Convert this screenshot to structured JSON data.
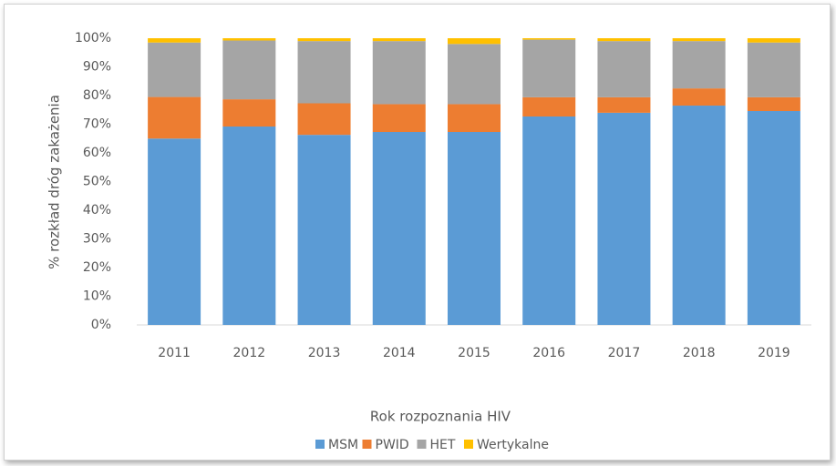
{
  "chart_data": {
    "type": "stacked_bar",
    "categories": [
      "2011",
      "2012",
      "2013",
      "2014",
      "2015",
      "2016",
      "2017",
      "2018",
      "2019"
    ],
    "series": [
      {
        "name": "MSM",
        "color": "#5b9bd5",
        "values": [
          65,
          69.2,
          66.3,
          67.3,
          67.3,
          72.7,
          74,
          76.5,
          74.6
        ]
      },
      {
        "name": "PWID",
        "color": "#ed7d31",
        "values": [
          14.5,
          9.5,
          11,
          9.7,
          9.7,
          6.7,
          5.4,
          6,
          4.8
        ]
      },
      {
        "name": "HET",
        "color": "#a5a5a5",
        "values": [
          19,
          20.5,
          21.7,
          22,
          21,
          20.1,
          19.6,
          16.5,
          19.1
        ]
      },
      {
        "name": "Wertykalne",
        "color": "#ffc000",
        "values": [
          1.5,
          0.8,
          1,
          1,
          2,
          0.5,
          1,
          1,
          1.5
        ]
      }
    ],
    "y_label": "% rozkład dróg zakażenia",
    "x_label": "Rok rozpoznania HIV",
    "ylim": [
      0,
      100
    ],
    "yticks": [
      {
        "value": 0,
        "label": "0%"
      },
      {
        "value": 10,
        "label": "10%"
      },
      {
        "value": 20,
        "label": "20%"
      },
      {
        "value": 30,
        "label": "30%"
      },
      {
        "value": 40,
        "label": "40%"
      },
      {
        "value": 50,
        "label": "50%"
      },
      {
        "value": 60,
        "label": "60%"
      },
      {
        "value": 70,
        "label": "70%"
      },
      {
        "value": 80,
        "label": "80%"
      },
      {
        "value": 90,
        "label": "90%"
      },
      {
        "value": 100,
        "label": "100%"
      }
    ],
    "legend": "bottom"
  }
}
